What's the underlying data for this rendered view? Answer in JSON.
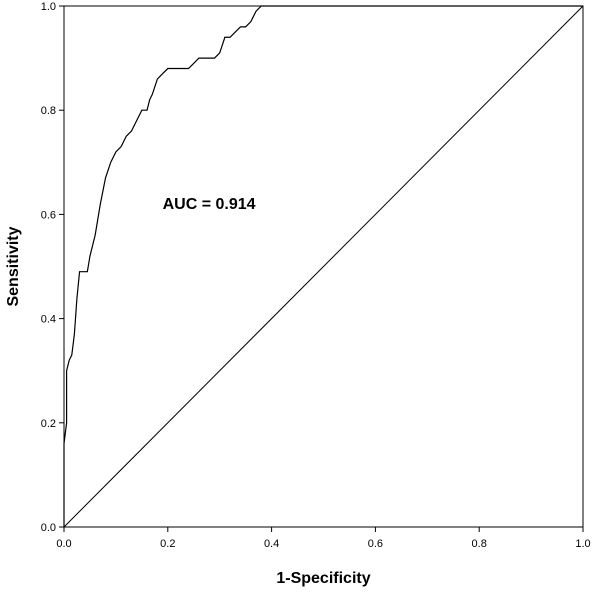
{
  "chart_data": {
    "type": "line",
    "title": "",
    "xlabel": "1-Specificity",
    "ylabel": "Sensitivity",
    "xlim": [
      0,
      1
    ],
    "ylim": [
      0,
      1
    ],
    "x_ticks": [
      "0.0",
      "0.2",
      "0.4",
      "0.6",
      "0.8",
      "1.0"
    ],
    "y_ticks": [
      "0.0",
      "0.2",
      "0.4",
      "0.6",
      "0.8",
      "1.0"
    ],
    "grid": false,
    "legend": "none",
    "annotation": {
      "text": "AUC = 0.914",
      "x": 0.19,
      "y": 0.61
    },
    "series": [
      {
        "role": "roc-curve",
        "x": [
          0.0,
          0.0,
          0.005,
          0.005,
          0.01,
          0.015,
          0.02,
          0.025,
          0.03,
          0.035,
          0.045,
          0.05,
          0.06,
          0.07,
          0.08,
          0.09,
          0.1,
          0.11,
          0.12,
          0.13,
          0.14,
          0.15,
          0.16,
          0.165,
          0.17,
          0.18,
          0.19,
          0.2,
          0.21,
          0.22,
          0.23,
          0.24,
          0.25,
          0.26,
          0.27,
          0.28,
          0.29,
          0.3,
          0.31,
          0.32,
          0.33,
          0.34,
          0.35,
          0.36,
          0.37,
          0.38,
          0.45,
          0.6,
          0.8,
          1.0
        ],
        "y": [
          0.0,
          0.16,
          0.2,
          0.3,
          0.32,
          0.33,
          0.37,
          0.44,
          0.49,
          0.49,
          0.49,
          0.52,
          0.56,
          0.62,
          0.67,
          0.7,
          0.72,
          0.73,
          0.75,
          0.76,
          0.78,
          0.8,
          0.8,
          0.82,
          0.83,
          0.86,
          0.87,
          0.88,
          0.88,
          0.88,
          0.88,
          0.88,
          0.89,
          0.9,
          0.9,
          0.9,
          0.9,
          0.91,
          0.94,
          0.94,
          0.95,
          0.96,
          0.96,
          0.97,
          0.99,
          1.0,
          1.0,
          1.0,
          1.0,
          1.0
        ]
      },
      {
        "role": "reference-line",
        "x": [
          0,
          1
        ],
        "y": [
          0,
          1
        ]
      }
    ],
    "colors": {
      "line": "#000000",
      "axis": "#000000",
      "background": "#ffffff"
    }
  }
}
